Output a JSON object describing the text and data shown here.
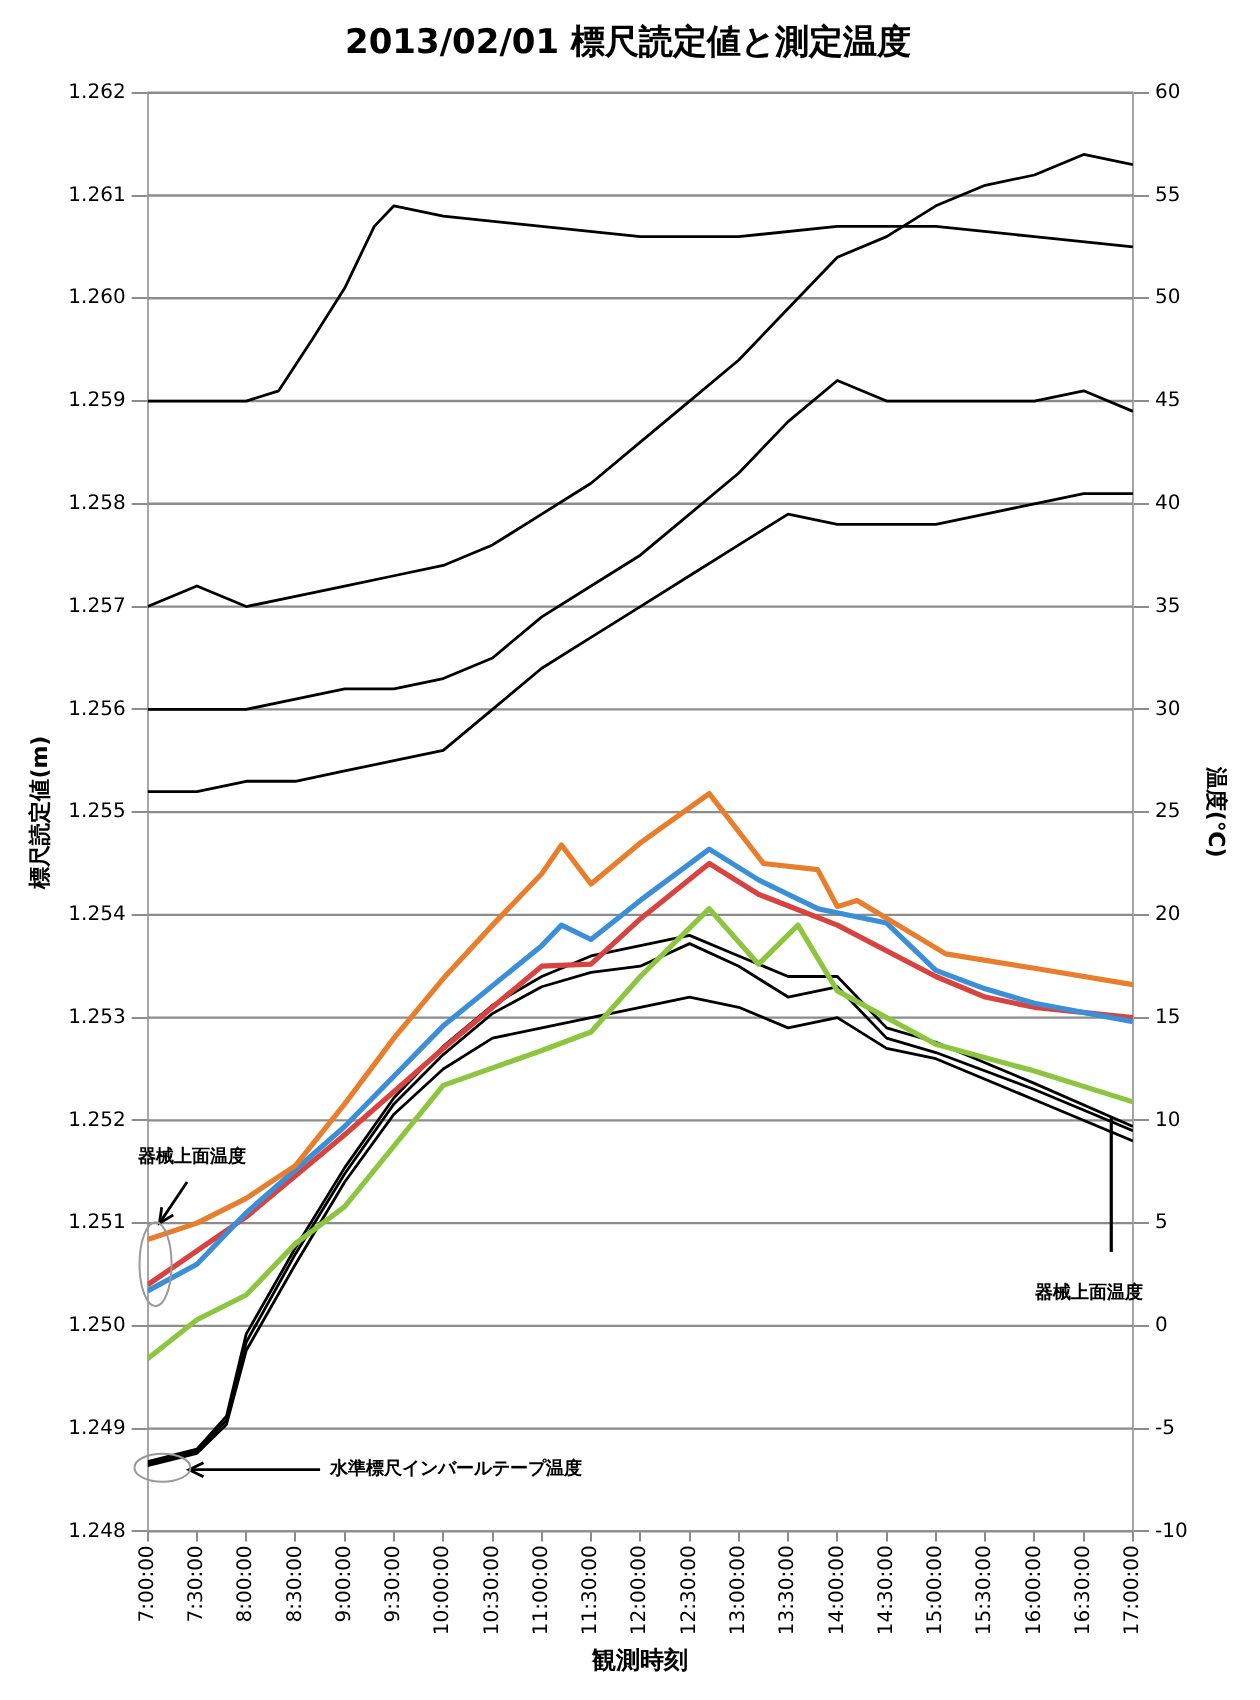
{
  "chart_data": {
    "type": "line",
    "title": "2013/02/01 標尺読定値と測定温度",
    "xlabel": "観測時刻",
    "ylabel": "標尺読定値(m)",
    "y2label": "温度(℃)",
    "xlim": [
      7,
      17
    ],
    "xticks": [
      {
        "value": 7,
        "label": "7:00:00"
      },
      {
        "value": 7.5,
        "label": "7:30:00"
      },
      {
        "value": 8,
        "label": "8:00:00"
      },
      {
        "value": 8.5,
        "label": "8:30:00"
      },
      {
        "value": 9,
        "label": "9:00:00"
      },
      {
        "value": 9.5,
        "label": "9:30:00"
      },
      {
        "value": 10,
        "label": "10:00:00"
      },
      {
        "value": 10.5,
        "label": "10:30:00"
      },
      {
        "value": 11,
        "label": "11:00:00"
      },
      {
        "value": 11.5,
        "label": "11:30:00"
      },
      {
        "value": 12,
        "label": "12:00:00"
      },
      {
        "value": 12.5,
        "label": "12:30:00"
      },
      {
        "value": 13,
        "label": "13:00:00"
      },
      {
        "value": 13.5,
        "label": "13:30:00"
      },
      {
        "value": 14,
        "label": "14:00:00"
      },
      {
        "value": 14.5,
        "label": "14:30:00"
      },
      {
        "value": 15,
        "label": "15:00:00"
      },
      {
        "value": 15.5,
        "label": "15:30:00"
      },
      {
        "value": 16,
        "label": "16:00:00"
      },
      {
        "value": 16.5,
        "label": "16:30:00"
      },
      {
        "value": 17,
        "label": "17:00:00"
      }
    ],
    "ylim": [
      1.248,
      1.262
    ],
    "yticks": [
      1.248,
      1.249,
      {
        "value": 1.25,
        "label": "1.250"
      },
      1.251,
      1.252,
      1.253,
      1.254,
      1.255,
      1.256,
      1.257,
      1.258,
      1.259,
      {
        "value": 1.26,
        "label": "1.260"
      },
      1.261,
      1.262
    ],
    "y2lim": [
      -10,
      60
    ],
    "y2ticks": [
      -10,
      -5,
      0,
      5,
      10,
      15,
      20,
      25,
      30,
      35,
      40,
      45,
      50,
      55,
      60
    ],
    "grid": "y",
    "legend": false,
    "marker": "none",
    "line_style": "solid",
    "annotations": [
      "器械上面温度",
      "器械上面温度",
      "水準標尺インバールテープ温度"
    ],
    "series": [
      {
        "color": "#000000",
        "x": [
          7,
          7.5,
          8,
          8.33,
          8.67,
          9,
          9.3,
          9.5,
          10,
          11,
          12,
          13,
          14,
          15,
          16,
          17
        ],
        "values": [
          1.259,
          1.259,
          1.259,
          1.2591,
          1.2596,
          1.2601,
          1.2607,
          1.2609,
          1.2608,
          1.2607,
          1.2606,
          1.2606,
          1.2607,
          1.2607,
          1.2606,
          1.2605
        ]
      },
      {
        "color": "#000000",
        "x": [
          7,
          7.5,
          8,
          8.5,
          9,
          9.5,
          10,
          10.5,
          11,
          11.5,
          12,
          12.5,
          13,
          13.5,
          14,
          14.5,
          15,
          15.5,
          16,
          16.5,
          17
        ],
        "values": [
          1.257,
          1.2572,
          1.257,
          1.2571,
          1.2572,
          1.2573,
          1.2574,
          1.2576,
          1.2579,
          1.2582,
          1.2586,
          1.259,
          1.2594,
          1.2599,
          1.2604,
          1.2606,
          1.2609,
          1.2611,
          1.2612,
          1.2614,
          1.2613
        ]
      },
      {
        "color": "#000000",
        "x": [
          7,
          7.5,
          8,
          8.5,
          9,
          9.5,
          10,
          10.5,
          11,
          11.5,
          12,
          12.5,
          13,
          13.5,
          14,
          14.5,
          15,
          15.5,
          16,
          16.5,
          17
        ],
        "values": [
          1.256,
          1.256,
          1.256,
          1.2561,
          1.2562,
          1.2562,
          1.2563,
          1.2565,
          1.2569,
          1.2572,
          1.2575,
          1.2579,
          1.2583,
          1.2588,
          1.2592,
          1.259,
          1.259,
          1.259,
          1.259,
          1.2591,
          1.2589
        ]
      },
      {
        "color": "#000000",
        "x": [
          7,
          7.5,
          8,
          8.5,
          9,
          9.5,
          10,
          10.5,
          11,
          11.5,
          12,
          12.5,
          13,
          13.5,
          14,
          14.5,
          15,
          15.5,
          16,
          16.5,
          17
        ],
        "values": [
          1.2552,
          1.2552,
          1.2553,
          1.2553,
          1.2554,
          1.2555,
          1.2556,
          1.256,
          1.2564,
          1.2567,
          1.257,
          1.2573,
          1.2576,
          1.2579,
          1.2578,
          1.2578,
          1.2578,
          1.2579,
          1.258,
          1.2581,
          1.2581
        ]
      },
      {
        "color": "#e87d2b",
        "axis": "y2",
        "x": [
          7,
          7.5,
          8,
          8.5,
          9,
          9.5,
          10,
          10.5,
          11,
          11.2,
          11.5,
          12,
          12.7,
          13.25,
          13.8,
          14,
          14.2,
          15.1,
          16,
          17
        ],
        "values": [
          4.2,
          5.0,
          6.2,
          7.8,
          10.8,
          14.0,
          16.9,
          19.5,
          22.0,
          23.4,
          21.5,
          23.5,
          25.9,
          22.5,
          22.2,
          20.4,
          20.7,
          18.1,
          17.4,
          16.6
        ]
      },
      {
        "color": "#3b8fd8",
        "axis": "y2",
        "x": [
          7,
          7.5,
          8,
          9,
          10,
          11,
          11.2,
          11.5,
          12,
          12.7,
          13.2,
          13.8,
          14.5,
          15,
          15.5,
          16,
          17
        ],
        "values": [
          1.7,
          3.0,
          5.5,
          9.7,
          14.6,
          18.5,
          19.5,
          18.8,
          20.7,
          23.2,
          21.7,
          20.3,
          19.6,
          17.3,
          16.4,
          15.7,
          14.8
        ]
      },
      {
        "color": "#d9433f",
        "axis": "y2",
        "x": [
          7,
          8,
          9,
          10,
          11,
          11.5,
          12,
          12.7,
          13.2,
          14,
          15,
          15.5,
          16,
          17
        ],
        "values": [
          2.0,
          5.3,
          9.3,
          13.5,
          17.5,
          17.6,
          19.8,
          22.5,
          21.0,
          19.5,
          17.0,
          16.0,
          15.5,
          15.0
        ]
      },
      {
        "color": "#8cc63f",
        "axis": "y2",
        "x": [
          7,
          7.5,
          8,
          8.5,
          9,
          10,
          11,
          11.5,
          12,
          12.7,
          13.2,
          13.6,
          14,
          15,
          16,
          17
        ],
        "values": [
          -1.6,
          0.3,
          1.5,
          4.0,
          5.8,
          11.7,
          13.4,
          14.3,
          17.0,
          20.3,
          17.6,
          19.5,
          16.3,
          13.7,
          12.4,
          10.9
        ]
      },
      {
        "color": "#000000",
        "axis": "y2",
        "x": [
          7,
          7.5,
          7.8,
          8,
          8.5,
          9,
          9.5,
          10,
          10.5,
          11,
          11.5,
          12,
          12.5,
          13,
          13.5,
          14,
          14.5,
          15,
          16,
          17
        ],
        "values": [
          -6.6,
          -6.0,
          -4.4,
          -0.4,
          3.8,
          7.7,
          11.1,
          13.6,
          15.6,
          17.0,
          18.0,
          18.5,
          19.0,
          18.0,
          17.0,
          17.0,
          14.5,
          13.8,
          11.8,
          9.7
        ]
      },
      {
        "color": "#000000",
        "axis": "y2",
        "x": [
          7,
          7.5,
          7.8,
          8,
          8.5,
          9,
          9.5,
          10,
          10.5,
          11,
          11.5,
          12,
          12.5,
          13,
          13.5,
          14,
          14.5,
          15,
          16,
          17
        ],
        "values": [
          -6.7,
          -6.1,
          -4.6,
          -0.8,
          3.5,
          7.4,
          10.8,
          13.2,
          15.2,
          16.5,
          17.2,
          17.5,
          18.6,
          17.5,
          16.0,
          16.5,
          14.0,
          13.3,
          11.5,
          9.5
        ]
      },
      {
        "color": "#000000",
        "axis": "y2",
        "x": [
          7,
          7.5,
          7.8,
          8,
          8.5,
          9,
          9.5,
          10,
          10.5,
          11,
          11.5,
          12,
          12.5,
          13,
          13.5,
          14,
          14.5,
          15,
          16,
          17
        ],
        "values": [
          -6.8,
          -6.2,
          -4.8,
          -1.2,
          3.0,
          7.0,
          10.3,
          12.5,
          14.0,
          14.5,
          15.0,
          15.5,
          16.0,
          15.5,
          14.5,
          15.0,
          13.5,
          13.0,
          11.0,
          9.0
        ]
      }
    ]
  }
}
